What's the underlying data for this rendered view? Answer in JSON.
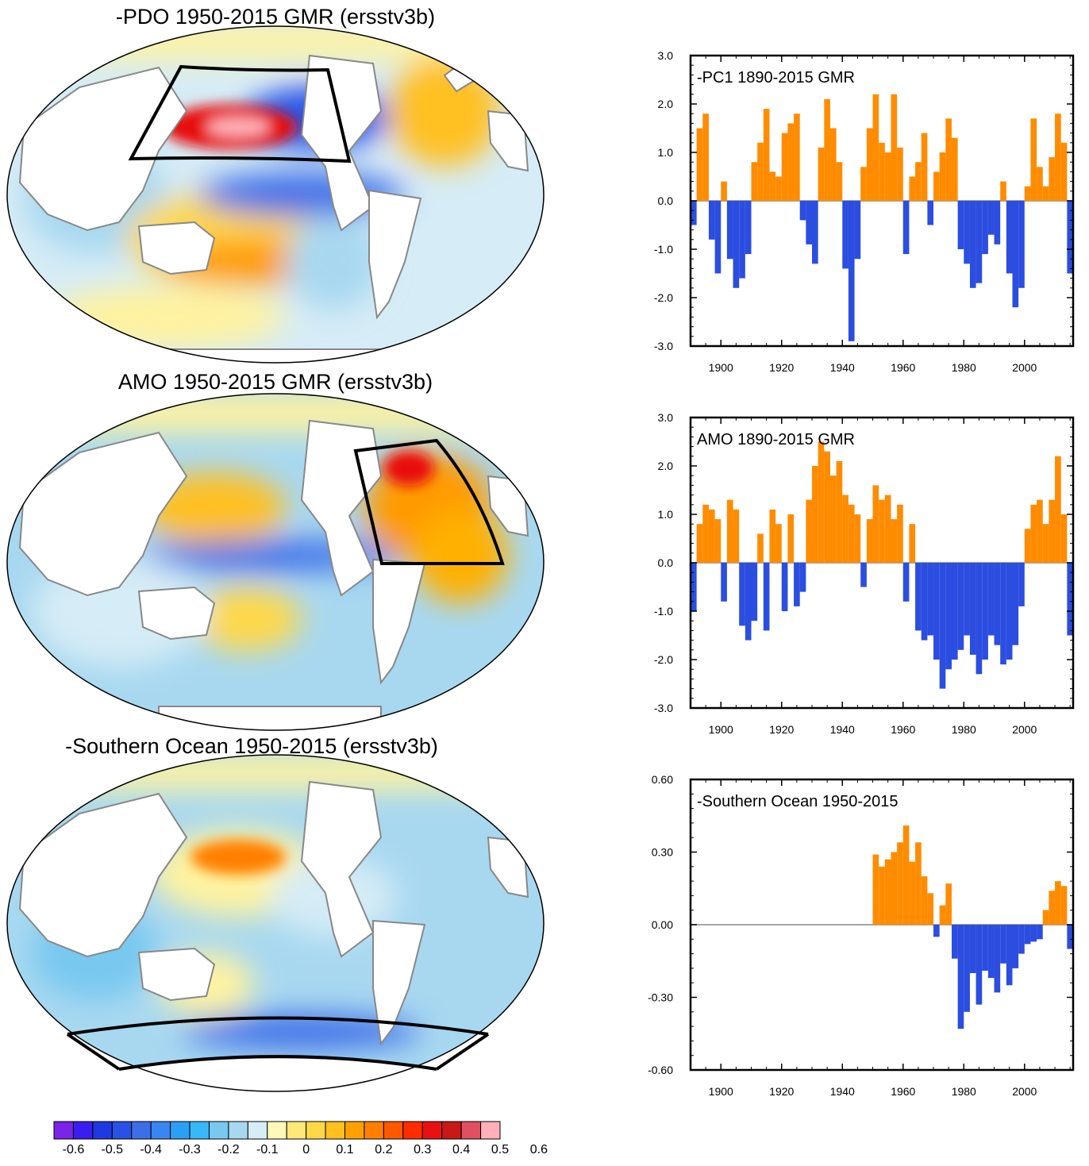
{
  "maps": [
    {
      "title": "-PDO 1950-2015 GMR (ersstv3b)",
      "box": "North Pacific"
    },
    {
      "title": "AMO 1950-2015 GMR (ersstv3b)",
      "box": "North Atlantic"
    },
    {
      "title": "-Southern Ocean 1950-2015 (ersstv3b)",
      "box": "Southern Ocean"
    }
  ],
  "colorbar": {
    "colors": [
      "#7a24e8",
      "#3a1ef0",
      "#2038e0",
      "#2852e6",
      "#3c6ee8",
      "#3a86f0",
      "#2aa0f5",
      "#38b8f8",
      "#78c8f0",
      "#a8d8f0",
      "#d6ecf6",
      "#fff8b8",
      "#ffe878",
      "#ffd848",
      "#ffc020",
      "#ffa000",
      "#ff8000",
      "#ff5800",
      "#ff2c00",
      "#e81010",
      "#c81818",
      "#e05060",
      "#ffb0b8"
    ],
    "labels": [
      "-0.6",
      "-0.5",
      "-0.4",
      "-0.3",
      "-0.2",
      "-0.1",
      "0",
      "0.1",
      "0.2",
      "0.3",
      "0.4",
      "0.5",
      "0.6"
    ]
  },
  "chart_data": [
    {
      "type": "bar",
      "title": "-PC1 1890-2015 GMR",
      "xlim": [
        1890,
        2016
      ],
      "ylim": [
        -3.0,
        3.0
      ],
      "xticks": [
        "1900",
        "1920",
        "1940",
        "1960",
        "1980",
        "2000"
      ],
      "yticks": [
        "3.0",
        "2.0",
        "1.0",
        "0.0",
        "-1.0",
        "-2.0",
        "-3.0"
      ],
      "positive_color": "#ff8c00",
      "negative_color": "#2b4de0",
      "series": [
        {
          "name": "-PC1",
          "x": [
            1890,
            1892,
            1894,
            1896,
            1898,
            1900,
            1902,
            1904,
            1906,
            1908,
            1910,
            1912,
            1914,
            1916,
            1918,
            1920,
            1922,
            1924,
            1926,
            1928,
            1930,
            1932,
            1934,
            1936,
            1938,
            1940,
            1942,
            1944,
            1946,
            1948,
            1950,
            1952,
            1954,
            1956,
            1958,
            1960,
            1962,
            1964,
            1966,
            1968,
            1970,
            1972,
            1974,
            1976,
            1978,
            1980,
            1982,
            1984,
            1986,
            1988,
            1990,
            1992,
            1994,
            1996,
            1998,
            2000,
            2002,
            2004,
            2006,
            2008,
            2010,
            2012,
            2014
          ],
          "values": [
            -0.5,
            1.5,
            1.8,
            -0.8,
            -1.5,
            0.4,
            -1.2,
            -1.8,
            -1.6,
            -1.1,
            0.8,
            1.2,
            1.9,
            0.6,
            0.5,
            1.4,
            1.6,
            1.8,
            -0.4,
            -0.9,
            -1.3,
            1.1,
            2.1,
            1.5,
            0.8,
            -1.4,
            -2.9,
            -1.2,
            0.7,
            1.5,
            2.2,
            1.2,
            1.0,
            2.2,
            1.1,
            -1.1,
            0.5,
            0.8,
            1.4,
            -0.5,
            0.6,
            1.0,
            1.7,
            1.3,
            -1.0,
            -1.3,
            -1.8,
            -1.7,
            -1.1,
            -0.7,
            -0.9,
            0.4,
            -1.5,
            -2.2,
            -1.8,
            0.3,
            1.7,
            0.7,
            0.3,
            0.9,
            1.8,
            1.2,
            -1.5
          ]
        }
      ]
    },
    {
      "type": "bar",
      "title": "AMO 1890-2015 GMR",
      "xlim": [
        1890,
        2016
      ],
      "ylim": [
        -3.0,
        3.0
      ],
      "xticks": [
        "1900",
        "1920",
        "1940",
        "1960",
        "1980",
        "2000"
      ],
      "yticks": [
        "3.0",
        "2.0",
        "1.0",
        "0.0",
        "-1.0",
        "-2.0",
        "-3.0"
      ],
      "positive_color": "#ff8c00",
      "negative_color": "#2b4de0",
      "series": [
        {
          "name": "AMO",
          "x": [
            1890,
            1892,
            1894,
            1896,
            1898,
            1900,
            1902,
            1904,
            1906,
            1908,
            1910,
            1912,
            1914,
            1916,
            1918,
            1920,
            1922,
            1924,
            1926,
            1928,
            1930,
            1932,
            1934,
            1936,
            1938,
            1940,
            1942,
            1944,
            1946,
            1948,
            1950,
            1952,
            1954,
            1956,
            1958,
            1960,
            1962,
            1964,
            1966,
            1968,
            1970,
            1972,
            1974,
            1976,
            1978,
            1980,
            1982,
            1984,
            1986,
            1988,
            1990,
            1992,
            1994,
            1996,
            1998,
            2000,
            2002,
            2004,
            2006,
            2008,
            2010,
            2012,
            2014
          ],
          "values": [
            -1.0,
            0.8,
            1.2,
            1.1,
            0.9,
            -0.8,
            1.3,
            1.1,
            -1.3,
            -1.6,
            -1.2,
            0.6,
            -1.4,
            1.1,
            0.8,
            -1.0,
            1.0,
            -0.9,
            -0.6,
            1.3,
            2.0,
            2.5,
            2.3,
            1.8,
            2.1,
            1.4,
            1.2,
            1.0,
            -0.5,
            0.9,
            1.6,
            1.3,
            1.4,
            0.9,
            1.2,
            -0.8,
            0.8,
            -1.4,
            -1.6,
            -1.5,
            -2.0,
            -2.6,
            -2.2,
            -2.0,
            -1.8,
            -1.5,
            -1.9,
            -2.3,
            -2.0,
            -1.5,
            -1.7,
            -2.1,
            -2.0,
            -1.7,
            -0.9,
            0.7,
            1.2,
            1.3,
            0.8,
            1.3,
            2.2,
            1.0,
            -1.5
          ]
        }
      ]
    },
    {
      "type": "bar",
      "title": "-Southern Ocean 1950-2015",
      "xlim": [
        1890,
        2016
      ],
      "ylim": [
        -0.6,
        0.6
      ],
      "xticks": [
        "1900",
        "1920",
        "1940",
        "1960",
        "1980",
        "2000"
      ],
      "yticks": [
        "0.60",
        "0.30",
        "0.00",
        "-0.30",
        "-0.60"
      ],
      "positive_color": "#ff8c00",
      "negative_color": "#2b4de0",
      "series": [
        {
          "name": "-Southern Ocean",
          "x": [
            1950,
            1952,
            1954,
            1956,
            1958,
            1960,
            1962,
            1964,
            1966,
            1968,
            1970,
            1972,
            1974,
            1976,
            1978,
            1980,
            1982,
            1984,
            1986,
            1988,
            1990,
            1992,
            1994,
            1996,
            1998,
            2000,
            2002,
            2004,
            2006,
            2008,
            2010,
            2012,
            2014
          ],
          "values": [
            0.29,
            0.24,
            0.27,
            0.3,
            0.34,
            0.41,
            0.26,
            0.34,
            0.2,
            0.13,
            -0.05,
            0.08,
            0.17,
            -0.14,
            -0.43,
            -0.36,
            -0.2,
            -0.33,
            -0.19,
            -0.22,
            -0.28,
            -0.16,
            -0.25,
            -0.18,
            -0.12,
            -0.08,
            -0.07,
            -0.06,
            0.06,
            0.14,
            0.18,
            0.16,
            -0.1
          ]
        }
      ]
    }
  ]
}
